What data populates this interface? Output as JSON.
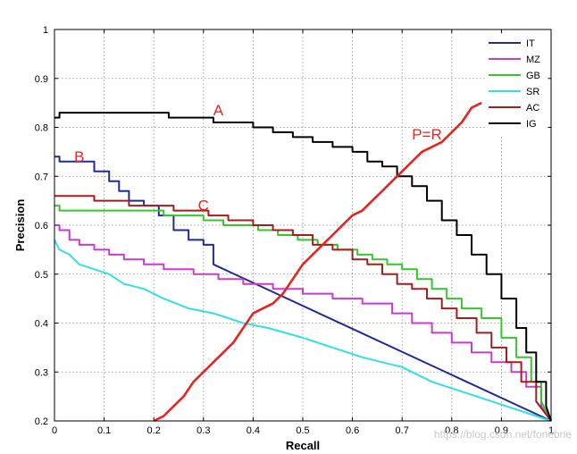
{
  "chart_data": {
    "type": "line",
    "xlabel": "Recall",
    "ylabel": "Precision",
    "xlim": [
      0,
      1
    ],
    "ylim": [
      0.2,
      1
    ],
    "xticks": [
      0,
      0.1,
      0.2,
      0.3,
      0.4,
      0.5,
      0.6,
      0.7,
      0.8,
      0.9,
      1
    ],
    "yticks": [
      0.2,
      0.3,
      0.4,
      0.5,
      0.6,
      0.7,
      0.8,
      0.9,
      1
    ],
    "xtick_labels": [
      "0",
      "0.1",
      "0.2",
      "0.3",
      "0.4",
      "0.5",
      "0.6",
      "0.7",
      "0.8",
      "0.9",
      "1"
    ],
    "ytick_labels": [
      "0.2",
      "0.3",
      "0.4",
      "0.5",
      "0.6",
      "0.7",
      "0.8",
      "0.9",
      "1"
    ],
    "grid": true,
    "legend_position": "top-right",
    "series": [
      {
        "name": "IT",
        "color": "#1f2a9c",
        "style": "step",
        "x": [
          0,
          0.01,
          0.05,
          0.08,
          0.11,
          0.13,
          0.15,
          0.18,
          0.21,
          0.24,
          0.27,
          0.3,
          0.32,
          1.0
        ],
        "y": [
          0.74,
          0.73,
          0.73,
          0.71,
          0.69,
          0.67,
          0.65,
          0.64,
          0.62,
          0.59,
          0.57,
          0.56,
          0.52,
          0.2
        ]
      },
      {
        "name": "MZ",
        "color": "#c83bcc",
        "style": "step",
        "x": [
          0,
          0.01,
          0.03,
          0.05,
          0.08,
          0.11,
          0.14,
          0.18,
          0.22,
          0.28,
          0.33,
          0.38,
          0.44,
          0.5,
          0.56,
          0.62,
          0.68,
          0.72,
          0.76,
          0.8,
          0.84,
          0.88,
          0.92,
          0.95,
          0.98,
          1.0
        ],
        "y": [
          0.6,
          0.59,
          0.57,
          0.56,
          0.55,
          0.54,
          0.53,
          0.52,
          0.51,
          0.5,
          0.49,
          0.48,
          0.47,
          0.46,
          0.45,
          0.44,
          0.42,
          0.4,
          0.38,
          0.36,
          0.34,
          0.32,
          0.3,
          0.27,
          0.23,
          0.2
        ]
      },
      {
        "name": "GB",
        "color": "#35c62c",
        "style": "step",
        "x": [
          0,
          0.01,
          0.08,
          0.22,
          0.3,
          0.34,
          0.38,
          0.41,
          0.45,
          0.49,
          0.53,
          0.57,
          0.61,
          0.64,
          0.67,
          0.7,
          0.73,
          0.76,
          0.79,
          0.82,
          0.86,
          0.9,
          0.93,
          0.96,
          0.98,
          1.0
        ],
        "y": [
          0.64,
          0.63,
          0.63,
          0.62,
          0.61,
          0.6,
          0.6,
          0.59,
          0.58,
          0.57,
          0.56,
          0.55,
          0.54,
          0.53,
          0.52,
          0.51,
          0.49,
          0.47,
          0.45,
          0.43,
          0.41,
          0.37,
          0.33,
          0.28,
          0.24,
          0.2
        ]
      },
      {
        "name": "SR",
        "color": "#2fe0e8",
        "style": "line",
        "x": [
          0,
          0.01,
          0.03,
          0.05,
          0.08,
          0.11,
          0.14,
          0.18,
          0.22,
          0.27,
          0.32,
          0.38,
          0.43,
          0.5,
          0.56,
          0.62,
          0.7,
          0.76,
          0.82,
          0.88,
          0.94,
          1.0
        ],
        "y": [
          0.57,
          0.55,
          0.54,
          0.52,
          0.51,
          0.5,
          0.48,
          0.47,
          0.45,
          0.43,
          0.42,
          0.4,
          0.39,
          0.37,
          0.35,
          0.33,
          0.31,
          0.28,
          0.26,
          0.24,
          0.22,
          0.2
        ]
      },
      {
        "name": "AC",
        "color": "#a51d1d",
        "style": "step",
        "x": [
          0,
          0.01,
          0.08,
          0.15,
          0.24,
          0.31,
          0.35,
          0.4,
          0.44,
          0.48,
          0.52,
          0.56,
          0.6,
          0.63,
          0.66,
          0.69,
          0.72,
          0.75,
          0.78,
          0.81,
          0.85,
          0.88,
          0.91,
          0.94,
          0.97,
          1.0
        ],
        "y": [
          0.66,
          0.66,
          0.65,
          0.64,
          0.63,
          0.62,
          0.61,
          0.6,
          0.59,
          0.58,
          0.56,
          0.55,
          0.53,
          0.52,
          0.5,
          0.48,
          0.47,
          0.45,
          0.43,
          0.41,
          0.38,
          0.35,
          0.32,
          0.28,
          0.24,
          0.2
        ]
      },
      {
        "name": "IG",
        "color": "#000000",
        "style": "step",
        "x": [
          0,
          0.01,
          0.05,
          0.23,
          0.32,
          0.4,
          0.44,
          0.48,
          0.52,
          0.56,
          0.6,
          0.63,
          0.66,
          0.69,
          0.72,
          0.75,
          0.78,
          0.81,
          0.84,
          0.87,
          0.9,
          0.93,
          0.95,
          0.97,
          0.99,
          1.0
        ],
        "y": [
          0.82,
          0.83,
          0.83,
          0.82,
          0.81,
          0.8,
          0.79,
          0.78,
          0.77,
          0.76,
          0.75,
          0.73,
          0.72,
          0.7,
          0.68,
          0.65,
          0.61,
          0.58,
          0.54,
          0.5,
          0.45,
          0.39,
          0.34,
          0.28,
          0.23,
          0.2
        ]
      },
      {
        "name": "",
        "color": "#e8231f",
        "style": "line",
        "x": [
          0.2,
          0.22,
          0.24,
          0.26,
          0.28,
          0.3,
          0.32,
          0.34,
          0.36,
          0.38,
          0.4,
          0.42,
          0.44,
          0.46,
          0.48,
          0.5,
          0.52,
          0.54,
          0.56,
          0.58,
          0.6,
          0.62,
          0.64,
          0.66,
          0.68,
          0.7,
          0.72,
          0.74,
          0.76,
          0.78,
          0.8,
          0.82,
          0.84,
          0.86
        ],
        "y": [
          0.2,
          0.21,
          0.23,
          0.25,
          0.28,
          0.3,
          0.32,
          0.34,
          0.36,
          0.39,
          0.42,
          0.43,
          0.44,
          0.46,
          0.49,
          0.52,
          0.54,
          0.56,
          0.58,
          0.6,
          0.62,
          0.63,
          0.65,
          0.67,
          0.69,
          0.71,
          0.73,
          0.75,
          0.76,
          0.77,
          0.79,
          0.81,
          0.84,
          0.85
        ]
      }
    ],
    "annotations": [
      {
        "text": "A",
        "x": 0.33,
        "y": 0.825
      },
      {
        "text": "B",
        "x": 0.05,
        "y": 0.73
      },
      {
        "text": "C",
        "x": 0.3,
        "y": 0.63
      },
      {
        "text": "P=R",
        "x": 0.75,
        "y": 0.775
      }
    ]
  },
  "watermark": "https://blog.csdn.net/fonebne"
}
